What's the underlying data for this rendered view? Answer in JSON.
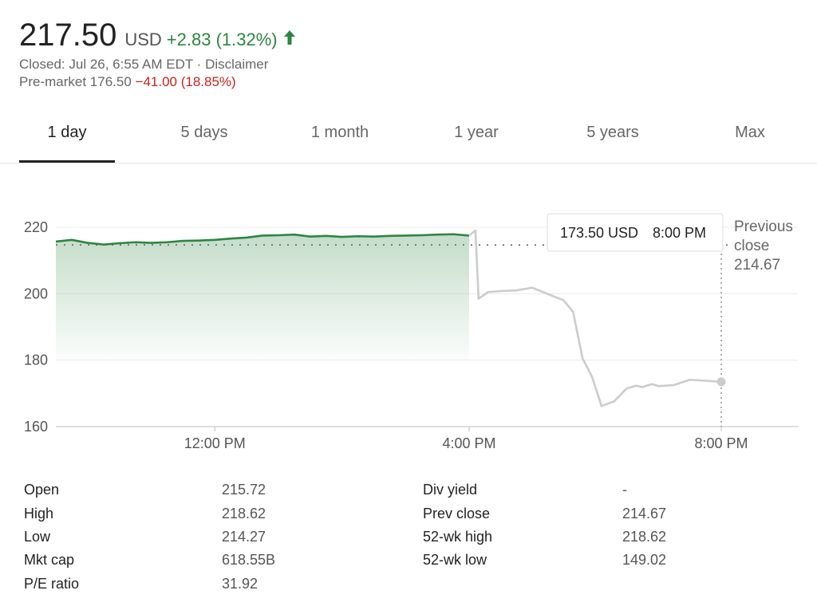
{
  "quote": {
    "price": "217.50",
    "currency": "USD",
    "change": "+2.83 (1.32%)",
    "change_icon": "arrow-up-icon",
    "status": "Closed: Jul 26, 6:55 AM EDT · Disclaimer",
    "premarket_label": "Pre-market 176.50",
    "premarket_change": "−41.00 (18.85%)"
  },
  "tabs": [
    "1 day",
    "5 days",
    "1 month",
    "1 year",
    "5 years",
    "Max"
  ],
  "active_tab": "1 day",
  "tooltip": {
    "price": "173.50 USD",
    "time": "8:00 PM"
  },
  "previous_close_label": [
    "Previous",
    "close",
    "214.67"
  ],
  "colors": {
    "up": "#2e8540",
    "down": "#c5221f",
    "after_hours": "#cccccc",
    "fill": "#2e8540"
  },
  "chart_data": {
    "type": "line",
    "y_ticks": [
      "220",
      "200",
      "180",
      "160"
    ],
    "x_ticks": [
      "12:00 PM",
      "4:00 PM",
      "8:00 PM"
    ],
    "ylim": [
      160,
      222
    ],
    "previous_close": 214.67,
    "grid": true,
    "series": [
      {
        "values_hours": [
          9.5,
          9.75,
          10.0,
          10.25,
          10.5,
          10.75,
          11.0,
          11.25,
          11.5,
          11.75,
          12.0,
          12.25,
          12.5,
          12.75,
          13.0,
          13.25,
          13.5,
          13.75,
          14.0,
          14.25,
          14.5,
          14.75,
          15.0,
          15.25,
          15.5,
          15.75,
          16.0
        ],
        "values": [
          215.7,
          216.2,
          215.3,
          214.8,
          215.2,
          215.5,
          215.3,
          215.5,
          215.9,
          216.0,
          216.2,
          216.6,
          216.9,
          217.5,
          217.6,
          217.8,
          217.2,
          217.4,
          217.1,
          217.3,
          217.2,
          217.4,
          217.5,
          217.6,
          217.8,
          217.9,
          217.5
        ]
      },
      {
        "values_hours": [
          16.0,
          16.1,
          16.15,
          16.3,
          16.5,
          16.75,
          17.0,
          17.25,
          17.5,
          17.65,
          17.8,
          17.95,
          18.1,
          18.3,
          18.5,
          18.65,
          18.75,
          18.9,
          19.0,
          19.25,
          19.5,
          19.75,
          20.0
        ],
        "values": [
          217.5,
          219.0,
          198.5,
          200.5,
          200.8,
          201.0,
          201.8,
          199.9,
          198.0,
          194.5,
          180.5,
          175.0,
          166.2,
          167.6,
          171.5,
          172.3,
          171.9,
          172.8,
          172.2,
          172.5,
          174.1,
          173.8,
          173.5
        ]
      }
    ]
  },
  "stats": {
    "left": [
      {
        "label": "Open",
        "value": "215.72"
      },
      {
        "label": "High",
        "value": "218.62"
      },
      {
        "label": "Low",
        "value": "214.27"
      },
      {
        "label": "Mkt cap",
        "value": "618.55B"
      },
      {
        "label": "P/E ratio",
        "value": "31.92"
      }
    ],
    "right": [
      {
        "label": "Div yield",
        "value": "-"
      },
      {
        "label": "Prev close",
        "value": "214.67"
      },
      {
        "label": "52-wk high",
        "value": "218.62"
      },
      {
        "label": "52-wk low",
        "value": "149.02"
      }
    ]
  }
}
